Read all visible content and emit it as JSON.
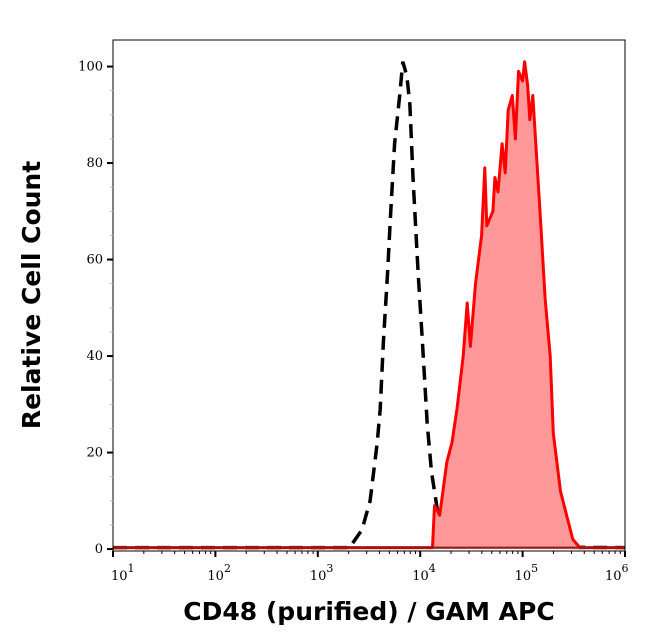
{
  "chart_data": {
    "type": "area",
    "xlabel": "CD48 (purified) / GAM APC",
    "ylabel": "Relative Cell Count",
    "xscale": "log",
    "xlim": [
      10,
      1000000
    ],
    "ylim": [
      -0.4,
      105.5
    ],
    "x_ticks": [
      {
        "base": "10",
        "exp": "1",
        "value": 10
      },
      {
        "base": "10",
        "exp": "2",
        "value": 100
      },
      {
        "base": "10",
        "exp": "3",
        "value": 1000
      },
      {
        "base": "10",
        "exp": "4",
        "value": 10000
      },
      {
        "base": "10",
        "exp": "5",
        "value": 100000
      },
      {
        "base": "10",
        "exp": "6",
        "value": 1000000
      }
    ],
    "y_ticks": [
      "0",
      "20",
      "40",
      "60",
      "80",
      "100"
    ],
    "grid": false,
    "series": [
      {
        "style": "dashed-line",
        "color": "#000000",
        "x": [
          10,
          2040,
          2700,
          3240,
          3800,
          4070,
          4370,
          4790,
          5130,
          5620,
          6310,
          6760,
          7410,
          7940,
          8510,
          9550,
          10500,
          11700,
          12900,
          14500,
          15500,
          18000,
          1000000
        ],
        "y": [
          0.3,
          0.3,
          4,
          10,
          22,
          29,
          43,
          57,
          69,
          84,
          94,
          101,
          98,
          92,
          77,
          57,
          43,
          26,
          16,
          9,
          4,
          0.5,
          0.3
        ]
      },
      {
        "style": "filled",
        "color": "#ff0000",
        "fill": "#ff9999",
        "x": [
          10,
          13200,
          13800,
          15500,
          18200,
          20400,
          22900,
          26300,
          28800,
          30900,
          34700,
          39800,
          42700,
          44700,
          51300,
          53700,
          57500,
          63100,
          67600,
          72400,
          79400,
          85100,
          91200,
          100000,
          104700,
          112200,
          117500,
          125900,
          147900,
          166000,
          186200,
          199500,
          234400,
          269200,
          309000,
          363100,
          1000000
        ],
        "y": [
          0.3,
          0.3,
          9,
          7,
          18,
          22,
          29,
          40,
          51,
          42,
          55,
          65,
          79,
          67,
          70,
          77,
          74,
          84,
          78,
          91,
          94,
          85,
          99,
          97,
          101,
          96,
          89,
          94,
          70,
          52,
          40,
          24,
          12,
          7,
          2,
          0.3,
          0.3
        ]
      }
    ]
  }
}
